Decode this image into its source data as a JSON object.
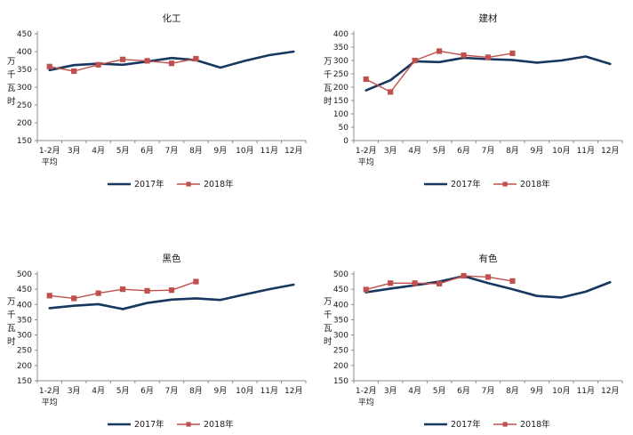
{
  "colors": {
    "series_2017": "#17375E",
    "series_2018": "#C0504D",
    "axis": "#8C8C8C",
    "text": "#1a1a1a"
  },
  "chart_data": [
    {
      "type": "line",
      "title": "化工",
      "ylabel": "万千瓦时",
      "xlabel": "",
      "ylim": [
        150,
        450
      ],
      "ystep": 50,
      "grid": false,
      "legend_position": "bottom",
      "categories": [
        "1-2月平均",
        "3月",
        "4月",
        "5月",
        "6月",
        "7月",
        "8月",
        "9月",
        "10月",
        "11月",
        "12月"
      ],
      "series": [
        {
          "name": "2017年",
          "color_key": "series_2017",
          "marker": "none",
          "values": [
            348,
            362,
            366,
            363,
            372,
            382,
            376,
            355,
            374,
            390,
            400
          ]
        },
        {
          "name": "2018年",
          "color_key": "series_2018",
          "marker": "square",
          "values": [
            358,
            345,
            363,
            378,
            374,
            367,
            380
          ]
        }
      ]
    },
    {
      "type": "line",
      "title": "建材",
      "ylabel": "万千瓦时",
      "xlabel": "",
      "ylim": [
        0,
        400
      ],
      "ystep": 50,
      "grid": false,
      "legend_position": "bottom",
      "categories": [
        "1-2月平均",
        "3月",
        "4月",
        "5月",
        "6月",
        "7月",
        "8月",
        "9月",
        "10月",
        "11月",
        "12月"
      ],
      "series": [
        {
          "name": "2017年",
          "color_key": "series_2017",
          "marker": "none",
          "values": [
            188,
            226,
            297,
            294,
            310,
            305,
            302,
            292,
            300,
            315,
            287
          ]
        },
        {
          "name": "2018年",
          "color_key": "series_2018",
          "marker": "square",
          "values": [
            230,
            182,
            300,
            335,
            320,
            312,
            327
          ]
        }
      ]
    },
    {
      "type": "line",
      "title": "黑色",
      "ylabel": "万千瓦时",
      "xlabel": "",
      "ylim": [
        150,
        500
      ],
      "ystep": 50,
      "grid": false,
      "legend_position": "bottom",
      "categories": [
        "1-2月平均",
        "3月",
        "4月",
        "5月",
        "6月",
        "7月",
        "8月",
        "9月",
        "10月",
        "11月",
        "12月"
      ],
      "series": [
        {
          "name": "2017年",
          "color_key": "series_2017",
          "marker": "none",
          "values": [
            388,
            396,
            401,
            385,
            405,
            416,
            420,
            415,
            433,
            450,
            465
          ]
        },
        {
          "name": "2018年",
          "color_key": "series_2018",
          "marker": "square",
          "values": [
            429,
            420,
            437,
            450,
            445,
            447,
            475
          ]
        }
      ]
    },
    {
      "type": "line",
      "title": "有色",
      "ylabel": "万千瓦时",
      "xlabel": "",
      "ylim": [
        150,
        500
      ],
      "ystep": 50,
      "grid": false,
      "legend_position": "bottom",
      "categories": [
        "1-2月平均",
        "3月",
        "4月",
        "5月",
        "6月",
        "7月",
        "8月",
        "9月",
        "10月",
        "11月",
        "12月"
      ],
      "series": [
        {
          "name": "2017年",
          "color_key": "series_2017",
          "marker": "none",
          "values": [
            440,
            452,
            463,
            475,
            493,
            470,
            450,
            428,
            423,
            442,
            473
          ]
        },
        {
          "name": "2018年",
          "color_key": "series_2018",
          "marker": "square",
          "values": [
            449,
            470,
            470,
            468,
            494,
            490,
            477
          ]
        }
      ]
    }
  ]
}
